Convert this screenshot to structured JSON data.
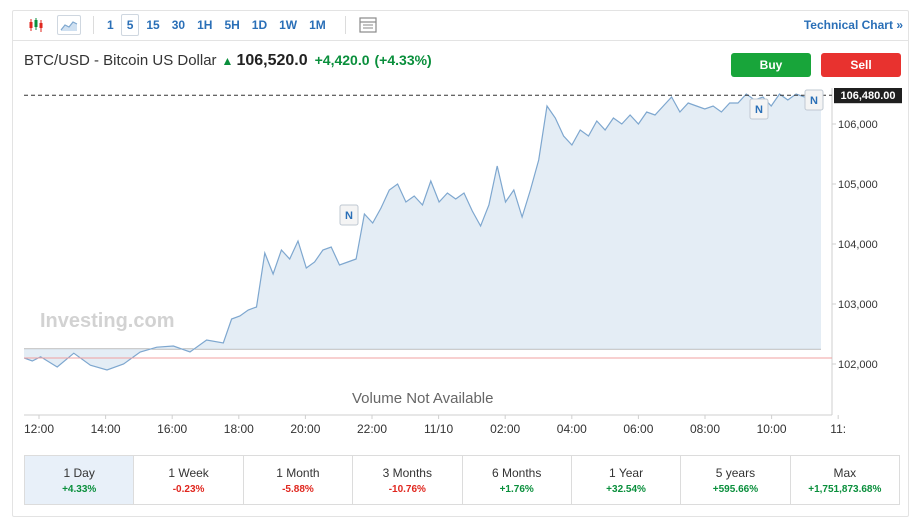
{
  "toolbar": {
    "timeframes": [
      "1",
      "5",
      "15",
      "30",
      "1H",
      "5H",
      "1D",
      "1W",
      "1M"
    ],
    "active_timeframe": "5",
    "technical_chart_label": "Technical Chart",
    "technical_chart_arrow": "»"
  },
  "header": {
    "pair": "BTC/USD - Bitcoin US Dollar",
    "last_price": "106,520.0",
    "change": "+4,420.0",
    "change_pct": "(+4.33%)",
    "buy_label": "Buy",
    "sell_label": "Sell"
  },
  "colors": {
    "accent_blue": "#2a6fb7",
    "up_green": "#0a8f3c",
    "down_red": "#e0261e",
    "buy_button": "#18a53a",
    "sell_button": "#e8322f",
    "area_fill": "#dde8f3",
    "area_line": "#7ea7cf"
  },
  "chart_data": {
    "type": "area",
    "x_ticks": [
      "12:00",
      "14:00",
      "16:00",
      "18:00",
      "20:00",
      "22:00",
      "11/10",
      "02:00",
      "04:00",
      "06:00",
      "08:00",
      "10:00",
      "11:"
    ],
    "y_ticks": [
      "106,000",
      "105,000",
      "104,000",
      "103,000",
      "102,000"
    ],
    "ylim": [
      101150,
      106600
    ],
    "current_price_label": "106,480.00",
    "current_price": 106480,
    "reference_price": 102100,
    "series": [
      {
        "x": [
          0,
          0.25,
          0.5,
          1.0,
          1.5,
          2.0,
          2.5,
          3.0,
          3.5,
          4.0,
          4.5,
          5.0,
          5.5,
          6.0,
          6.25,
          6.5,
          6.75,
          7.0,
          7.25,
          7.5,
          7.75,
          8.0,
          8.25,
          8.5,
          8.75,
          9.0,
          9.25,
          9.5,
          9.75,
          10.0,
          10.25,
          10.5,
          10.75,
          11.0,
          11.25,
          11.5,
          11.75,
          12.0,
          12.25,
          12.5,
          12.75,
          13.0,
          13.25,
          13.5,
          13.75,
          14.0,
          14.25,
          14.5,
          14.75,
          15.0,
          15.25,
          15.5,
          15.75,
          16.0,
          16.25,
          16.5,
          16.75,
          17.0,
          17.25,
          17.5,
          17.75,
          18.0,
          18.25,
          18.5,
          18.75,
          19.0,
          19.25,
          19.5,
          19.75,
          20.0,
          20.25,
          20.5,
          20.75,
          21.0,
          21.25,
          21.5,
          21.75,
          22.0,
          22.25,
          22.5,
          22.75,
          23.0,
          23.25,
          23.5,
          23.75,
          24.0
        ],
        "values": [
          102100,
          102050,
          102120,
          101950,
          102180,
          101980,
          101900,
          102000,
          102200,
          102280,
          102300,
          102200,
          102400,
          102350,
          102750,
          102800,
          102900,
          102950,
          103850,
          103500,
          103900,
          103750,
          104050,
          103600,
          103700,
          103900,
          103950,
          103650,
          103700,
          103750,
          104500,
          104350,
          104600,
          104900,
          105000,
          104700,
          104800,
          104650,
          105050,
          104700,
          104850,
          104750,
          104850,
          104550,
          104300,
          104650,
          105300,
          104700,
          104900,
          104450,
          104900,
          105400,
          106300,
          106100,
          105800,
          105650,
          105900,
          105800,
          106050,
          105900,
          106100,
          106000,
          106150,
          106000,
          106200,
          106150,
          106300,
          106450,
          106200,
          106350,
          106300,
          106250,
          106300,
          106200,
          106350,
          106350,
          106500,
          106400,
          106450,
          106300,
          106500,
          106400,
          106500,
          106450,
          106520,
          106480
        ]
      }
    ],
    "news_markers": [
      "N",
      "N",
      "N"
    ],
    "watermark": "Investing.com",
    "volume_text": "Volume Not Available"
  },
  "periods": [
    {
      "label": "1 Day",
      "value": "+4.33%",
      "dir": "pos"
    },
    {
      "label": "1 Week",
      "value": "-0.23%",
      "dir": "neg"
    },
    {
      "label": "1 Month",
      "value": "-5.88%",
      "dir": "neg"
    },
    {
      "label": "3 Months",
      "value": "-10.76%",
      "dir": "neg"
    },
    {
      "label": "6 Months",
      "value": "+1.76%",
      "dir": "pos"
    },
    {
      "label": "1 Year",
      "value": "+32.54%",
      "dir": "pos"
    },
    {
      "label": "5 years",
      "value": "+595.66%",
      "dir": "pos"
    },
    {
      "label": "Max",
      "value": "+1,751,873.68%",
      "dir": "pos"
    }
  ],
  "active_period": "1 Day"
}
